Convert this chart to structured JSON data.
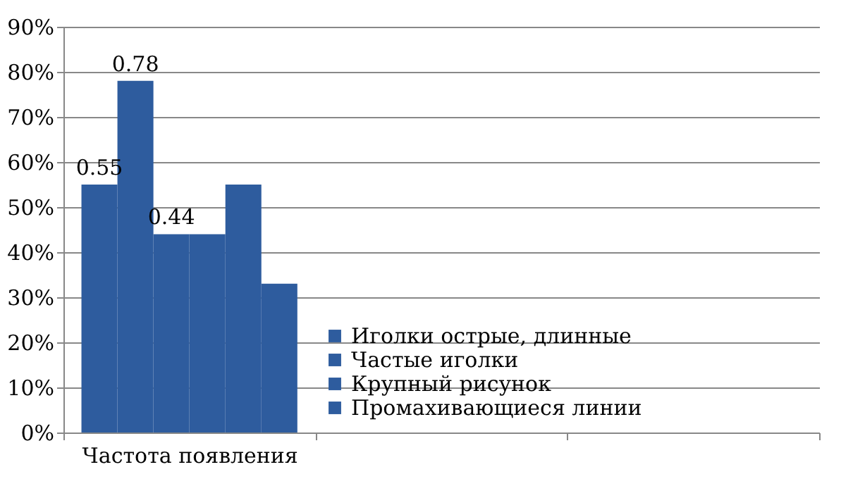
{
  "chart_data": {
    "type": "bar",
    "categories": [
      "Частота появления",
      null,
      null
    ],
    "series": [
      {
        "name": "Иголки острые, длинные",
        "color": "#2e5c9e",
        "values": [
          0.55,
          null,
          null
        ],
        "value_labels": [
          "0.55",
          null,
          null
        ]
      },
      {
        "name": "Частые иголки",
        "color": "#2e5c9e",
        "values": [
          0.78,
          null,
          null
        ],
        "value_labels": [
          "0.78",
          null,
          null
        ]
      },
      {
        "name": "Крупный рисунок",
        "color": "#2e5c9e",
        "values": [
          0.44,
          null,
          null
        ],
        "value_labels": [
          "0.44",
          null,
          null
        ]
      },
      {
        "name": "Промахивающиеся линии",
        "color": "#2e5c9e",
        "values": [
          0.44,
          null,
          null
        ]
      },
      {
        "color": "#2e5c9e",
        "values": [
          0.55,
          null,
          null
        ]
      },
      {
        "color": "#2e5c9e",
        "values": [
          0.33,
          null,
          null
        ]
      }
    ],
    "ylim": [
      0,
      0.9
    ],
    "yticks": [
      {
        "value": 0,
        "label": "0%"
      },
      {
        "value": 0.1,
        "label": "10%"
      },
      {
        "value": 0.2,
        "label": "20%"
      },
      {
        "value": 0.3,
        "label": "30%"
      },
      {
        "value": 0.4,
        "label": "40%"
      },
      {
        "value": 0.5,
        "label": "50%"
      },
      {
        "value": 0.6,
        "label": "60%"
      },
      {
        "value": 0.7,
        "label": "70%"
      },
      {
        "value": 0.8,
        "label": "80%"
      },
      {
        "value": 0.9,
        "label": "90%"
      }
    ],
    "grid": "y",
    "legend": "bottom"
  }
}
